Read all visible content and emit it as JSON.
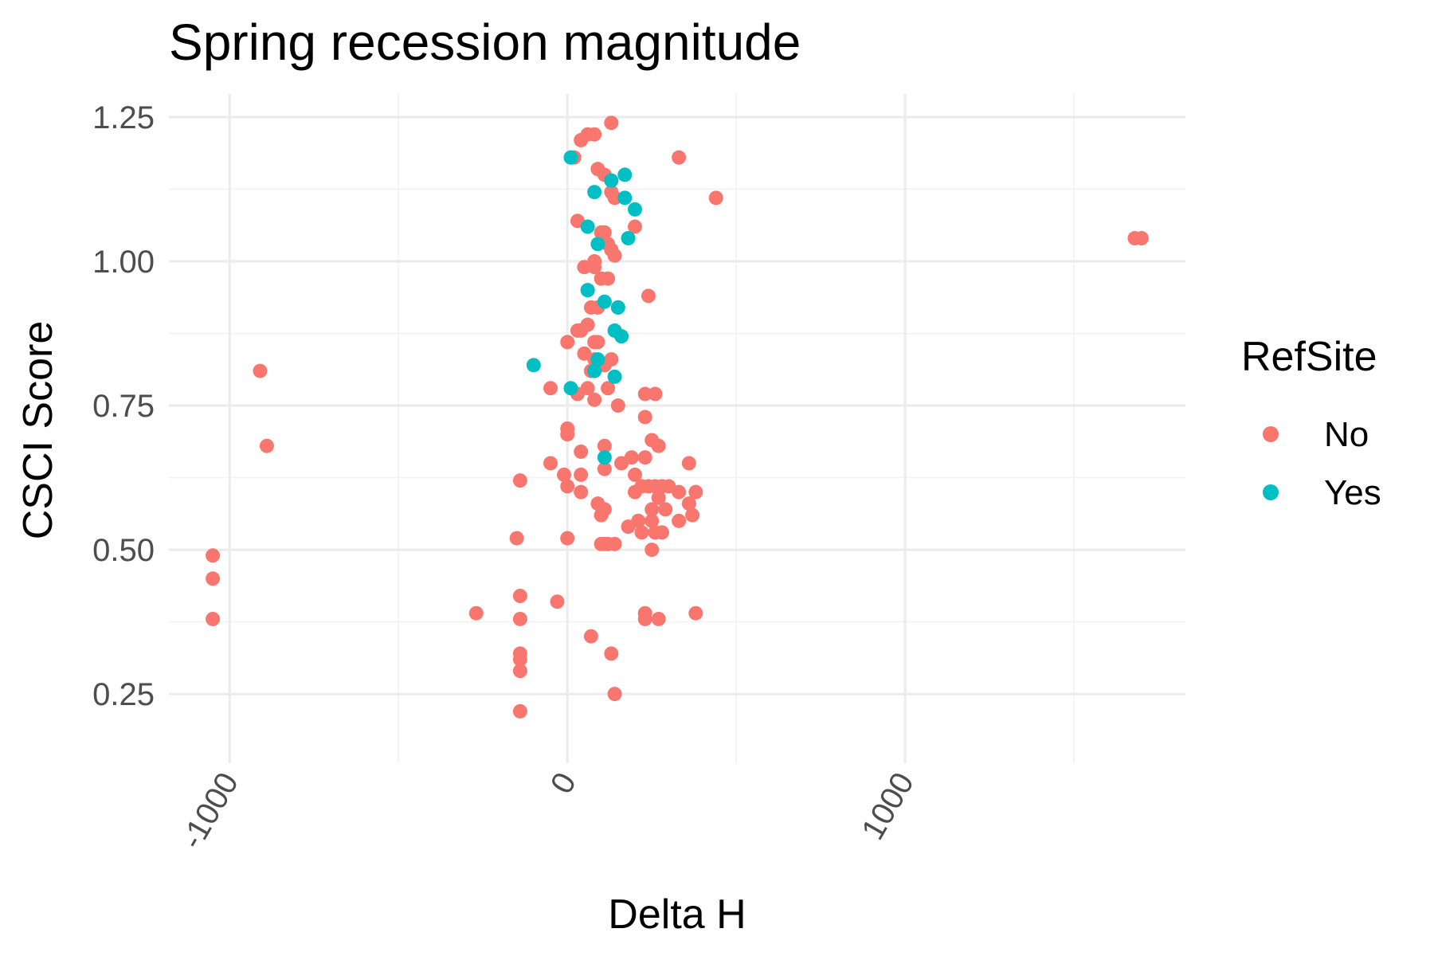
{
  "chart_data": {
    "type": "scatter",
    "title": "Spring recession magnitude",
    "xlabel": "Delta H",
    "ylabel": "CSCI Score",
    "xlim": [
      -1180,
      1830
    ],
    "ylim": [
      0.13,
      1.29
    ],
    "x_ticks": [
      -1000,
      0,
      1000
    ],
    "x_tick_labels": [
      "-1000",
      "0",
      "1000"
    ],
    "y_ticks": [
      0.25,
      0.5,
      0.75,
      1.0,
      1.25
    ],
    "y_tick_labels": [
      "0.25",
      "0.50",
      "0.75",
      "1.00",
      "1.25"
    ],
    "grid": true,
    "legend": {
      "title": "RefSite",
      "position": "right"
    },
    "series": [
      {
        "name": "No",
        "color": "#F8766D",
        "points": [
          [
            -1050,
            0.49
          ],
          [
            -1050,
            0.45
          ],
          [
            -1050,
            0.38
          ],
          [
            -910,
            0.81
          ],
          [
            -890,
            0.68
          ],
          [
            -270,
            0.39
          ],
          [
            -150,
            0.52
          ],
          [
            -140,
            0.62
          ],
          [
            -140,
            0.42
          ],
          [
            -140,
            0.38
          ],
          [
            -140,
            0.32
          ],
          [
            -140,
            0.31
          ],
          [
            -140,
            0.29
          ],
          [
            -140,
            0.22
          ],
          [
            -50,
            0.78
          ],
          [
            -50,
            0.65
          ],
          [
            -30,
            0.41
          ],
          [
            -10,
            0.63
          ],
          [
            0,
            0.86
          ],
          [
            0,
            0.71
          ],
          [
            0,
            0.7
          ],
          [
            0,
            0.61
          ],
          [
            0,
            0.52
          ],
          [
            20,
            1.18
          ],
          [
            30,
            1.07
          ],
          [
            30,
            0.88
          ],
          [
            30,
            0.77
          ],
          [
            40,
            1.21
          ],
          [
            40,
            0.88
          ],
          [
            40,
            0.67
          ],
          [
            40,
            0.63
          ],
          [
            40,
            0.6
          ],
          [
            50,
            0.99
          ],
          [
            50,
            0.84
          ],
          [
            60,
            1.22
          ],
          [
            60,
            0.95
          ],
          [
            60,
            0.89
          ],
          [
            60,
            0.78
          ],
          [
            70,
            0.92
          ],
          [
            70,
            0.81
          ],
          [
            70,
            0.35
          ],
          [
            80,
            1.22
          ],
          [
            80,
            1.0
          ],
          [
            80,
            0.99
          ],
          [
            80,
            0.86
          ],
          [
            80,
            0.83
          ],
          [
            80,
            0.81
          ],
          [
            80,
            0.76
          ],
          [
            90,
            1.16
          ],
          [
            90,
            0.92
          ],
          [
            90,
            0.86
          ],
          [
            90,
            0.82
          ],
          [
            90,
            0.58
          ],
          [
            100,
            1.05
          ],
          [
            100,
            0.97
          ],
          [
            100,
            0.51
          ],
          [
            100,
            0.56
          ],
          [
            110,
            1.15
          ],
          [
            110,
            1.05
          ],
          [
            110,
            0.82
          ],
          [
            110,
            0.68
          ],
          [
            110,
            0.64
          ],
          [
            110,
            0.57
          ],
          [
            110,
            0.51
          ],
          [
            120,
            1.03
          ],
          [
            120,
            0.97
          ],
          [
            120,
            0.78
          ],
          [
            120,
            0.51
          ],
          [
            130,
            1.24
          ],
          [
            130,
            1.12
          ],
          [
            130,
            1.02
          ],
          [
            130,
            0.83
          ],
          [
            130,
            0.32
          ],
          [
            140,
            1.11
          ],
          [
            140,
            1.01
          ],
          [
            140,
            0.51
          ],
          [
            140,
            0.25
          ],
          [
            150,
            0.92
          ],
          [
            150,
            0.75
          ],
          [
            160,
            0.65
          ],
          [
            180,
            0.54
          ],
          [
            190,
            0.66
          ],
          [
            200,
            0.63
          ],
          [
            200,
            0.6
          ],
          [
            200,
            1.06
          ],
          [
            210,
            0.55
          ],
          [
            220,
            0.61
          ],
          [
            220,
            0.53
          ],
          [
            230,
            0.77
          ],
          [
            230,
            0.73
          ],
          [
            230,
            0.66
          ],
          [
            230,
            0.39
          ],
          [
            230,
            0.38
          ],
          [
            240,
            0.94
          ],
          [
            240,
            0.61
          ],
          [
            250,
            0.69
          ],
          [
            250,
            0.57
          ],
          [
            250,
            0.55
          ],
          [
            250,
            0.5
          ],
          [
            260,
            0.77
          ],
          [
            260,
            0.61
          ],
          [
            260,
            0.53
          ],
          [
            270,
            0.68
          ],
          [
            270,
            0.59
          ],
          [
            270,
            0.38
          ],
          [
            280,
            0.61
          ],
          [
            280,
            0.53
          ],
          [
            290,
            0.57
          ],
          [
            300,
            0.61
          ],
          [
            330,
            1.18
          ],
          [
            330,
            0.6
          ],
          [
            330,
            0.55
          ],
          [
            360,
            0.65
          ],
          [
            360,
            0.58
          ],
          [
            370,
            0.56
          ],
          [
            380,
            0.6
          ],
          [
            380,
            0.39
          ],
          [
            440,
            1.11
          ],
          [
            1680,
            1.04
          ],
          [
            1700,
            1.04
          ]
        ]
      },
      {
        "name": "Yes",
        "color": "#00BFC4",
        "points": [
          [
            -100,
            0.82
          ],
          [
            10,
            1.18
          ],
          [
            10,
            0.78
          ],
          [
            60,
            1.06
          ],
          [
            60,
            0.95
          ],
          [
            80,
            1.12
          ],
          [
            80,
            0.81
          ],
          [
            90,
            1.03
          ],
          [
            90,
            0.83
          ],
          [
            110,
            0.93
          ],
          [
            110,
            0.66
          ],
          [
            130,
            1.14
          ],
          [
            140,
            0.88
          ],
          [
            140,
            0.8
          ],
          [
            150,
            0.92
          ],
          [
            160,
            0.87
          ],
          [
            170,
            1.15
          ],
          [
            170,
            1.11
          ],
          [
            180,
            1.04
          ],
          [
            200,
            1.09
          ]
        ]
      }
    ]
  }
}
